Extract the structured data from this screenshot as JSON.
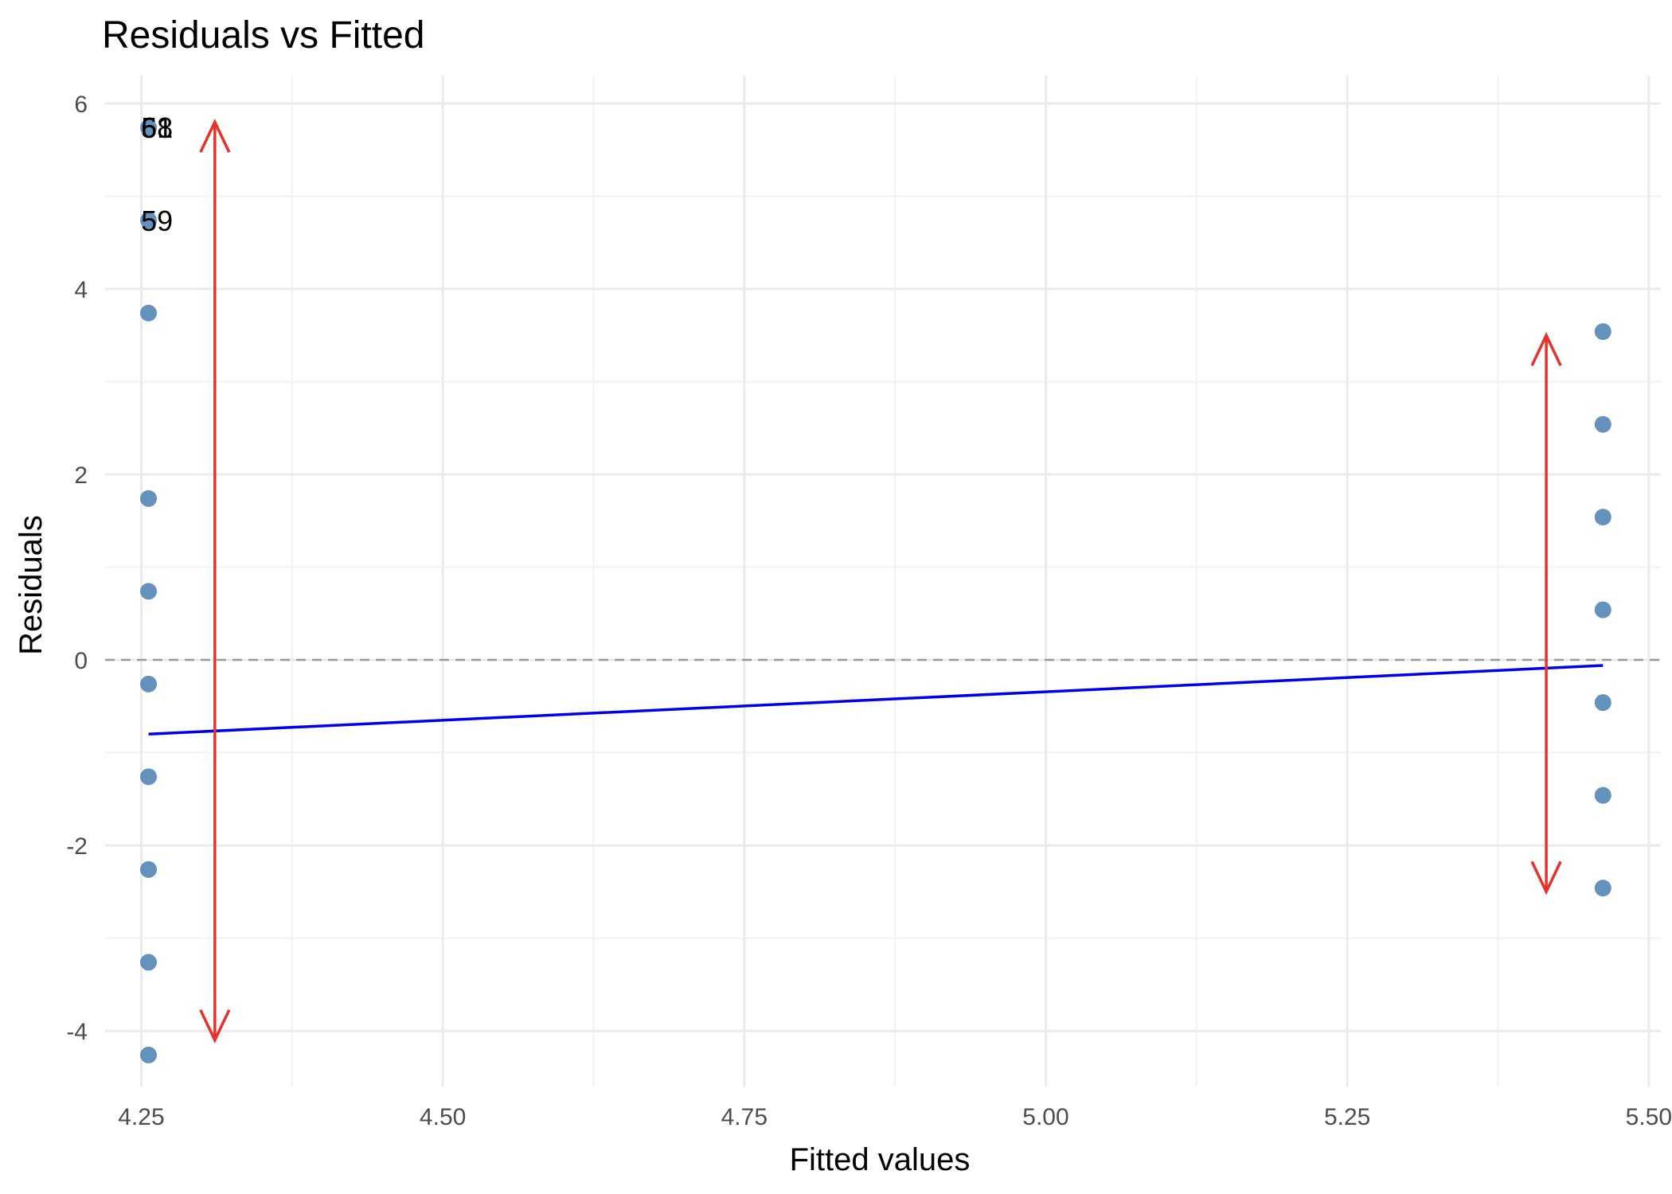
{
  "chart_data": {
    "type": "scatter",
    "title": "Residuals vs Fitted",
    "xlabel": "Fitted values",
    "ylabel": "Residuals",
    "xlim": [
      4.22,
      5.51
    ],
    "ylim": [
      -4.6,
      6.3
    ],
    "x_ticks": [
      4.25,
      4.5,
      4.75,
      5.0,
      5.25,
      5.5
    ],
    "x_tick_labels": [
      "4.25",
      "4.50",
      "4.75",
      "5.00",
      "5.25",
      "5.50"
    ],
    "y_ticks": [
      -4,
      -2,
      0,
      2,
      4,
      6
    ],
    "y_tick_labels": [
      "-4",
      "-2",
      "0",
      "2",
      "4",
      "6"
    ],
    "grid": true,
    "points": [
      {
        "x": 4.256,
        "y": 5.74
      },
      {
        "x": 4.256,
        "y": 4.74
      },
      {
        "x": 4.256,
        "y": 3.74
      },
      {
        "x": 4.256,
        "y": 1.74
      },
      {
        "x": 4.256,
        "y": 0.74
      },
      {
        "x": 4.256,
        "y": -0.26
      },
      {
        "x": 4.256,
        "y": -1.26
      },
      {
        "x": 4.256,
        "y": -2.26
      },
      {
        "x": 4.256,
        "y": -3.26
      },
      {
        "x": 4.256,
        "y": -4.26
      },
      {
        "x": 5.462,
        "y": 3.54
      },
      {
        "x": 5.462,
        "y": 2.54
      },
      {
        "x": 5.462,
        "y": 1.54
      },
      {
        "x": 5.462,
        "y": 0.54
      },
      {
        "x": 5.462,
        "y": -0.46
      },
      {
        "x": 5.462,
        "y": -1.46
      },
      {
        "x": 5.462,
        "y": -2.46
      }
    ],
    "point_labels": [
      {
        "text": "51",
        "x": 4.263,
        "y": 5.74
      },
      {
        "text": "68",
        "x": 4.263,
        "y": 5.74
      },
      {
        "text": "59",
        "x": 4.263,
        "y": 4.74
      }
    ],
    "reference_line": {
      "y": 0,
      "style": "dashed",
      "color": "#999999"
    },
    "trend_line": {
      "x": [
        4.256,
        5.462
      ],
      "y": [
        -0.8,
        -0.06
      ],
      "color": "#0000ee"
    },
    "spread_arrows": [
      {
        "x": 4.311,
        "y_from": -4.1,
        "y_to": 5.8,
        "color": "#e8312a"
      },
      {
        "x": 5.415,
        "y_from": -2.5,
        "y_to": 3.5,
        "color": "#e8312a"
      }
    ],
    "point_color": "#4a7fb0"
  }
}
